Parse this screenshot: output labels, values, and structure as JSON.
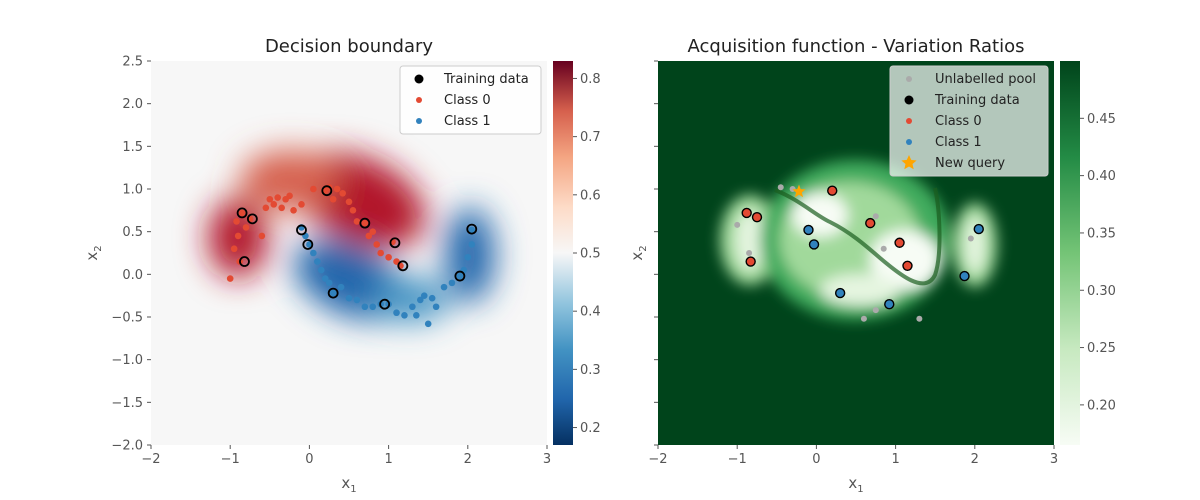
{
  "chart_data": [
    {
      "type": "scatter",
      "title": "Decision boundary",
      "xlabel": "x",
      "xlabel_sub": "1",
      "ylabel": "x",
      "ylabel_sub": "2",
      "xlim": [
        -2,
        3
      ],
      "ylim": [
        -2,
        2.5
      ],
      "xticks": [
        "−2",
        "−1",
        "0",
        "1",
        "2",
        "3"
      ],
      "yticks": [
        "−2.0",
        "−1.5",
        "−1.0",
        "−0.5",
        "0.0",
        "0.5",
        "1.0",
        "1.5",
        "2.0",
        "2.5"
      ],
      "background": "RdBu colormap showing class probability (red = class 0, blue = class 1)",
      "colorbar": {
        "colormap": "RdBu_r",
        "range": [
          0.17,
          0.83
        ],
        "ticks": [
          "0.2",
          "0.3",
          "0.4",
          "0.5",
          "0.6",
          "0.7",
          "0.8"
        ]
      },
      "legend": {
        "position": "upper right",
        "entries": [
          {
            "label": "Training data",
            "marker": "black-circle"
          },
          {
            "label": "Class 0",
            "color": "#e34a33"
          },
          {
            "label": "Class 1",
            "color": "#3182bd"
          }
        ]
      },
      "class0_points": [
        [
          -1.0,
          -0.05
        ],
        [
          -0.95,
          0.3
        ],
        [
          -0.92,
          0.62
        ],
        [
          -0.9,
          0.45
        ],
        [
          -0.88,
          0.15
        ],
        [
          -0.85,
          0.72
        ],
        [
          -0.8,
          0.55
        ],
        [
          -0.75,
          0.65
        ],
        [
          -0.6,
          0.45
        ],
        [
          -0.55,
          0.78
        ],
        [
          -0.5,
          0.88
        ],
        [
          -0.45,
          0.82
        ],
        [
          -0.4,
          0.9
        ],
        [
          -0.35,
          0.78
        ],
        [
          -0.3,
          0.88
        ],
        [
          -0.25,
          0.92
        ],
        [
          -0.2,
          0.75
        ],
        [
          -0.1,
          0.82
        ],
        [
          0.05,
          1.0
        ],
        [
          0.2,
          0.98
        ],
        [
          0.25,
          1.02
        ],
        [
          0.3,
          0.88
        ],
        [
          0.35,
          1.0
        ],
        [
          0.42,
          0.95
        ],
        [
          0.5,
          0.85
        ],
        [
          0.55,
          0.75
        ],
        [
          0.6,
          0.62
        ],
        [
          0.7,
          0.6
        ],
        [
          0.75,
          0.45
        ],
        [
          0.8,
          0.5
        ],
        [
          0.85,
          0.35
        ],
        [
          0.9,
          0.25
        ],
        [
          1.0,
          0.2
        ],
        [
          1.05,
          0.38
        ],
        [
          1.1,
          0.15
        ],
        [
          1.15,
          0.1
        ]
      ],
      "class1_points": [
        [
          -0.1,
          0.55
        ],
        [
          -0.05,
          0.45
        ],
        [
          0.0,
          0.35
        ],
        [
          0.05,
          0.25
        ],
        [
          0.1,
          0.15
        ],
        [
          0.15,
          0.05
        ],
        [
          0.2,
          -0.05
        ],
        [
          0.25,
          -0.1
        ],
        [
          0.3,
          -0.22
        ],
        [
          0.4,
          -0.15
        ],
        [
          0.5,
          -0.28
        ],
        [
          0.6,
          -0.3
        ],
        [
          0.7,
          -0.38
        ],
        [
          0.8,
          -0.38
        ],
        [
          0.9,
          -0.35
        ],
        [
          1.0,
          -0.35
        ],
        [
          1.1,
          -0.45
        ],
        [
          1.2,
          -0.48
        ],
        [
          1.3,
          -0.38
        ],
        [
          1.35,
          -0.48
        ],
        [
          1.4,
          -0.3
        ],
        [
          1.45,
          -0.25
        ],
        [
          1.5,
          -0.58
        ],
        [
          1.55,
          -0.28
        ],
        [
          1.6,
          -0.38
        ],
        [
          1.7,
          -0.15
        ],
        [
          1.8,
          -0.1
        ],
        [
          1.9,
          -0.02
        ],
        [
          1.95,
          0.05
        ],
        [
          2.0,
          0.2
        ],
        [
          2.05,
          0.35
        ],
        [
          2.05,
          0.52
        ]
      ],
      "training_points": [
        [
          -0.85,
          0.72
        ],
        [
          -0.72,
          0.65
        ],
        [
          -0.82,
          0.15
        ],
        [
          0.22,
          0.98
        ],
        [
          0.7,
          0.6
        ],
        [
          1.08,
          0.37
        ],
        [
          1.18,
          0.1
        ],
        [
          -0.1,
          0.52
        ],
        [
          -0.02,
          0.35
        ],
        [
          0.3,
          -0.22
        ],
        [
          0.95,
          -0.35
        ],
        [
          1.9,
          -0.02
        ],
        [
          2.05,
          0.53
        ]
      ]
    },
    {
      "type": "scatter",
      "title": "Acquisition function - Variation Ratios",
      "xlabel": "x",
      "xlabel_sub": "1",
      "ylabel": "x",
      "ylabel_sub": "2",
      "xlim": [
        -2,
        3
      ],
      "ylim": [
        -2,
        2.5
      ],
      "xticks": [
        "−2",
        "−1",
        "0",
        "1",
        "2",
        "3"
      ],
      "background": "Greens colormap showing variation ratio acquisition value",
      "colorbar": {
        "colormap": "Greens",
        "range": [
          0.165,
          0.5
        ],
        "ticks": [
          "0.20",
          "0.25",
          "0.30",
          "0.35",
          "0.40",
          "0.45"
        ]
      },
      "legend": {
        "position": "upper right",
        "entries": [
          {
            "label": "Unlabelled pool",
            "color": "#aaaaaa"
          },
          {
            "label": "Training data",
            "marker": "black-circle"
          },
          {
            "label": "Class 0",
            "color": "#e34a33"
          },
          {
            "label": "Class 1",
            "color": "#3182bd"
          },
          {
            "label": "New query",
            "color": "#ffa500",
            "marker": "star"
          }
        ]
      },
      "pool_points": [
        [
          -1.0,
          0.58
        ],
        [
          -0.85,
          0.25
        ],
        [
          -0.45,
          1.02
        ],
        [
          -0.3,
          1.0
        ],
        [
          0.75,
          0.68
        ],
        [
          0.85,
          0.3
        ],
        [
          0.75,
          -0.42
        ],
        [
          0.6,
          -0.52
        ],
        [
          1.3,
          -0.52
        ],
        [
          1.95,
          0.42
        ]
      ],
      "class0_points": [
        [
          -0.88,
          0.72
        ],
        [
          -0.75,
          0.67
        ],
        [
          -0.83,
          0.15
        ],
        [
          0.2,
          0.98
        ],
        [
          0.68,
          0.6
        ],
        [
          1.05,
          0.37
        ],
        [
          1.15,
          0.1
        ]
      ],
      "class1_points": [
        [
          -0.1,
          0.52
        ],
        [
          -0.03,
          0.35
        ],
        [
          0.3,
          -0.22
        ],
        [
          0.92,
          -0.35
        ],
        [
          1.87,
          -0.02
        ],
        [
          2.05,
          0.53
        ]
      ],
      "query_point": [
        -0.22,
        0.97
      ]
    }
  ]
}
